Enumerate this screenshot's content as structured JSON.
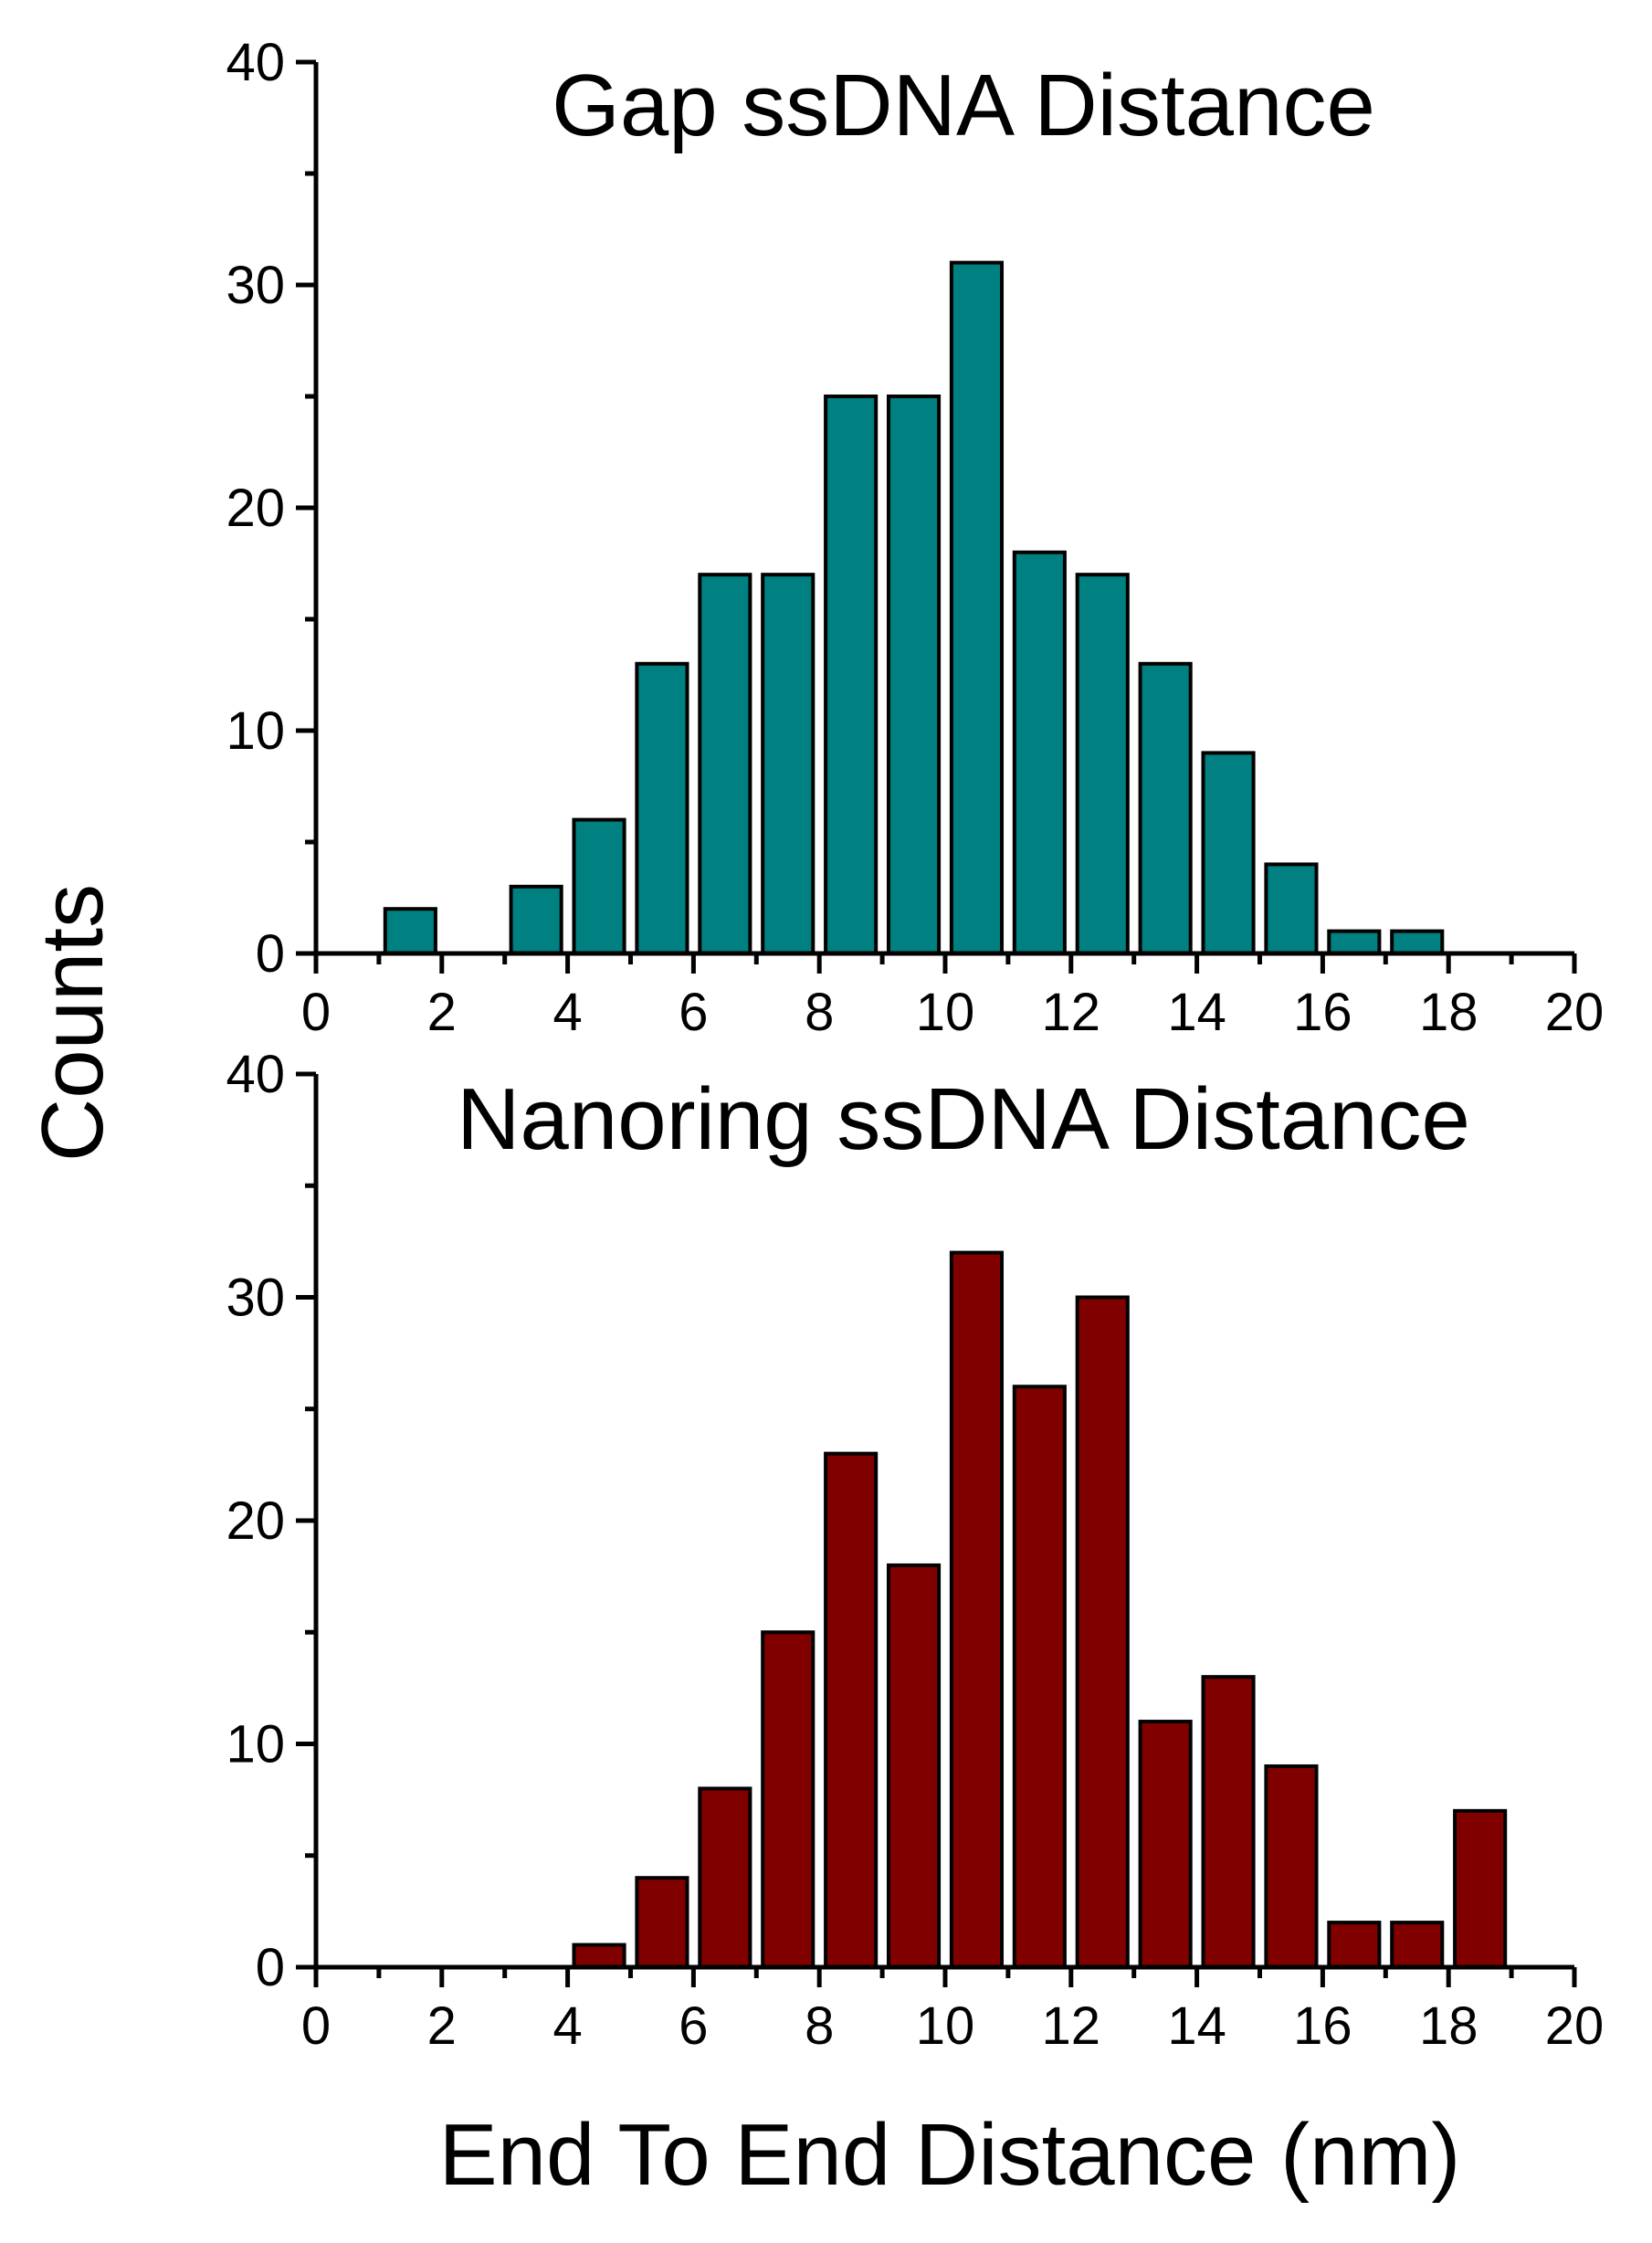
{
  "chart_data": [
    {
      "type": "bar",
      "title": "Gap ssDNA Distance",
      "xlabel": "End To End Distance (nm)",
      "ylabel": "Counts",
      "xlim": [
        0,
        20
      ],
      "ylim": [
        0,
        40
      ],
      "bin_width": 1,
      "bar_color": "#008080",
      "x_ticks": [
        "0",
        "2",
        "4",
        "6",
        "8",
        "10",
        "12",
        "14",
        "16",
        "18",
        "20"
      ],
      "y_ticks": [
        "0",
        "10",
        "20",
        "30",
        "40"
      ],
      "series": [
        {
          "name": "Gap ssDNA Distance",
          "bin_centers": [
            1.5,
            2.5,
            3.5,
            4.5,
            5.5,
            6.5,
            7.5,
            8.5,
            9.5,
            10.5,
            11.5,
            12.5,
            13.5,
            14.5,
            15.5,
            16.5,
            17.5
          ],
          "values": [
            2,
            0,
            3,
            6,
            13,
            17,
            17,
            25,
            25,
            31,
            18,
            17,
            13,
            9,
            4,
            1,
            1
          ]
        }
      ]
    },
    {
      "type": "bar",
      "title": "Nanoring ssDNA Distance",
      "xlabel": "End To End Distance (nm)",
      "ylabel": "Counts",
      "xlim": [
        0,
        20
      ],
      "ylim": [
        0,
        40
      ],
      "bin_width": 1,
      "bar_color": "#800000",
      "x_ticks": [
        "0",
        "2",
        "4",
        "6",
        "8",
        "10",
        "12",
        "14",
        "16",
        "18",
        "20"
      ],
      "y_ticks": [
        "0",
        "10",
        "20",
        "30",
        "40"
      ],
      "series": [
        {
          "name": "Nanoring ssDNA Distance",
          "bin_centers": [
            4.5,
            5.5,
            6.5,
            7.5,
            8.5,
            9.5,
            10.5,
            11.5,
            12.5,
            13.5,
            14.5,
            15.5,
            16.5,
            17.5,
            18.5
          ],
          "values": [
            1,
            4,
            8,
            15,
            23,
            18,
            32,
            26,
            30,
            11,
            13,
            9,
            2,
            2,
            7
          ]
        }
      ]
    }
  ]
}
